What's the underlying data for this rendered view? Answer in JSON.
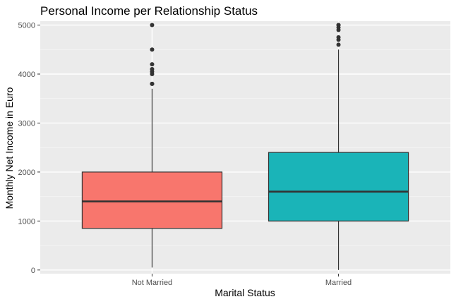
{
  "chart_data": {
    "type": "boxplot",
    "title": "Personal Income per Relationship Status",
    "xlabel": "Marital Status",
    "ylabel": "Monthly Net Income in Euro",
    "ylim": [
      -75,
      5080
    ],
    "yticks": [
      0,
      1000,
      2000,
      3000,
      4000,
      5000
    ],
    "yminor": [
      500,
      1500,
      2500,
      3500,
      4500
    ],
    "grid": true,
    "legend": "none",
    "categories": [
      "Not Married",
      "Married"
    ],
    "boxes": [
      {
        "category": "Not Married",
        "color": "#F8766D",
        "whisker_low": 50,
        "q1": 850,
        "median": 1400,
        "q3": 2000,
        "whisker_high": 3700,
        "outliers": [
          3800,
          3800,
          4000,
          4050,
          4100,
          4200,
          4500,
          5000
        ]
      },
      {
        "category": "Married",
        "color": "#1AB4B8",
        "whisker_low": 0,
        "q1": 1000,
        "median": 1600,
        "q3": 2400,
        "whisker_high": 4500,
        "outliers": [
          4600,
          4700,
          4750,
          4900,
          4950,
          5000,
          5000
        ]
      }
    ]
  }
}
